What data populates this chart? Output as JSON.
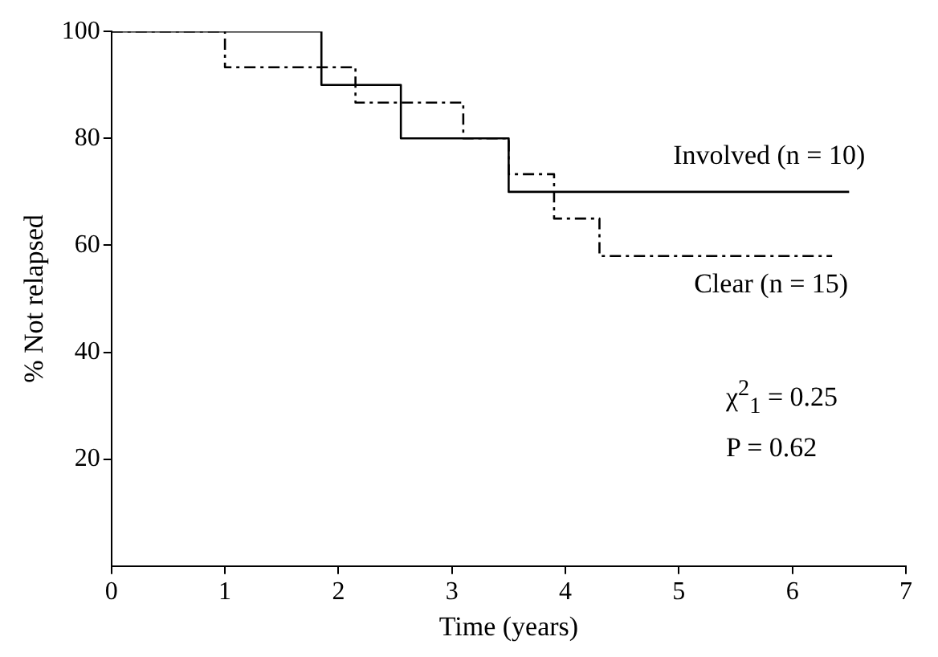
{
  "chart_data": {
    "type": "step",
    "xlabel": "Time (years)",
    "ylabel": "% Not relapsed",
    "xlim": [
      0,
      7
    ],
    "xticks": [
      0,
      1,
      2,
      3,
      4,
      5,
      6,
      7
    ],
    "ylim": [
      0,
      100
    ],
    "yticks": [
      20,
      40,
      60,
      80,
      100
    ],
    "grid": false,
    "legend": false,
    "marker": "none",
    "series": [
      {
        "name": "Involved (n = 10)",
        "color": "#000000",
        "line_style": "solid",
        "x": [
          0,
          1.85,
          2.55,
          3.5,
          6.5
        ],
        "values": [
          100,
          90,
          80,
          70,
          70
        ]
      },
      {
        "name": "Clear (n = 15)",
        "color": "#000000",
        "line_style": "dashed",
        "x": [
          0,
          1.0,
          2.15,
          3.1,
          3.5,
          3.9,
          4.3,
          6.35
        ],
        "values": [
          100,
          93.3,
          86.7,
          80,
          73.3,
          65,
          58,
          58
        ]
      }
    ],
    "annotations": [
      "χ$^{2}$$_{1}$ = 0.25",
      "P = 0.62"
    ]
  }
}
